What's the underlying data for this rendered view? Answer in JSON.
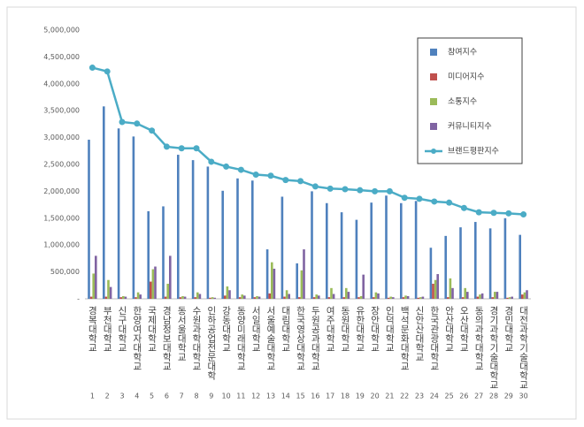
{
  "chart_data": {
    "type": "bar",
    "categories": [
      "경복대학교",
      "부천대학교",
      "신구대학교",
      "한양여자대학교",
      "국제대학교",
      "경남정보대학교",
      "동서울대학교",
      "수원과학대학교",
      "인하공업전문대학",
      "강동대학교",
      "동양미래대학교",
      "서일대학교",
      "서울예술대학교",
      "대림대학교",
      "한국영상대학교",
      "두원공과대학교",
      "여주대학교",
      "동원대학교",
      "유한대학교",
      "장안대학교",
      "인덕대학교",
      "백석문화대학교",
      "신안산대학교",
      "한국관광대학교",
      "안산대학교",
      "오산대학교",
      "동의과학대학교",
      "경기과학기술대학교",
      "경민대학교",
      "대전과학기술대학교"
    ],
    "ranks": [
      1,
      2,
      3,
      4,
      5,
      6,
      7,
      8,
      9,
      10,
      11,
      12,
      13,
      14,
      15,
      16,
      17,
      18,
      19,
      20,
      21,
      22,
      23,
      24,
      25,
      26,
      27,
      28,
      29,
      30
    ],
    "series": [
      {
        "name": "참여지수",
        "color": "#4f81bd",
        "values": [
          2960000,
          3580000,
          3170000,
          3020000,
          1630000,
          1720000,
          2680000,
          2580000,
          2460000,
          2010000,
          2240000,
          2200000,
          920000,
          1900000,
          660000,
          2000000,
          1780000,
          1610000,
          1470000,
          1790000,
          1920000,
          1780000,
          1820000,
          950000,
          1170000,
          1330000,
          1430000,
          1310000,
          1500000,
          1190000
        ]
      },
      {
        "name": "미디어지수",
        "color": "#c0504d",
        "values": [
          40000,
          40000,
          30000,
          30000,
          320000,
          40000,
          30000,
          30000,
          20000,
          60000,
          30000,
          30000,
          100000,
          40000,
          30000,
          30000,
          30000,
          30000,
          30000,
          30000,
          20000,
          30000,
          20000,
          280000,
          30000,
          30000,
          40000,
          30000,
          20000,
          80000
        ]
      },
      {
        "name": "소통지수",
        "color": "#9bbb59",
        "values": [
          470000,
          350000,
          50000,
          120000,
          550000,
          280000,
          50000,
          120000,
          30000,
          230000,
          80000,
          50000,
          680000,
          160000,
          530000,
          80000,
          200000,
          200000,
          50000,
          120000,
          40000,
          60000,
          30000,
          350000,
          380000,
          200000,
          80000,
          130000,
          30000,
          120000
        ]
      },
      {
        "name": "커뮤니티지수",
        "color": "#8064a2",
        "values": [
          800000,
          220000,
          40000,
          80000,
          600000,
          800000,
          40000,
          90000,
          20000,
          160000,
          60000,
          40000,
          560000,
          90000,
          920000,
          60000,
          90000,
          130000,
          450000,
          100000,
          30000,
          50000,
          40000,
          460000,
          200000,
          130000,
          100000,
          130000,
          40000,
          160000
        ]
      },
      {
        "name": "브랜드평판지수",
        "type": "line",
        "color": "#4bacc6",
        "values": [
          4300000,
          4230000,
          3290000,
          3260000,
          3130000,
          2830000,
          2800000,
          2800000,
          2550000,
          2460000,
          2400000,
          2310000,
          2290000,
          2210000,
          2190000,
          2090000,
          2050000,
          2040000,
          2020000,
          2000000,
          2000000,
          1880000,
          1860000,
          1810000,
          1790000,
          1690000,
          1610000,
          1600000,
          1590000,
          1570000
        ]
      }
    ],
    "ylim": [
      0,
      5000000
    ],
    "yticks": [
      {
        "value": 0,
        "label": "-"
      },
      {
        "value": 500000,
        "label": "500,000"
      },
      {
        "value": 1000000,
        "label": "1,000,000"
      },
      {
        "value": 1500000,
        "label": "1,500,000"
      },
      {
        "value": 2000000,
        "label": "2,000,000"
      },
      {
        "value": 2500000,
        "label": "2,500,000"
      },
      {
        "value": 3000000,
        "label": "3,000,000"
      },
      {
        "value": 3500000,
        "label": "3,500,000"
      },
      {
        "value": 4000000,
        "label": "4,000,000"
      },
      {
        "value": 4500000,
        "label": "4,500,000"
      },
      {
        "value": 5000000,
        "label": "5,000,000"
      }
    ],
    "grid": false,
    "legend": "upper right"
  }
}
